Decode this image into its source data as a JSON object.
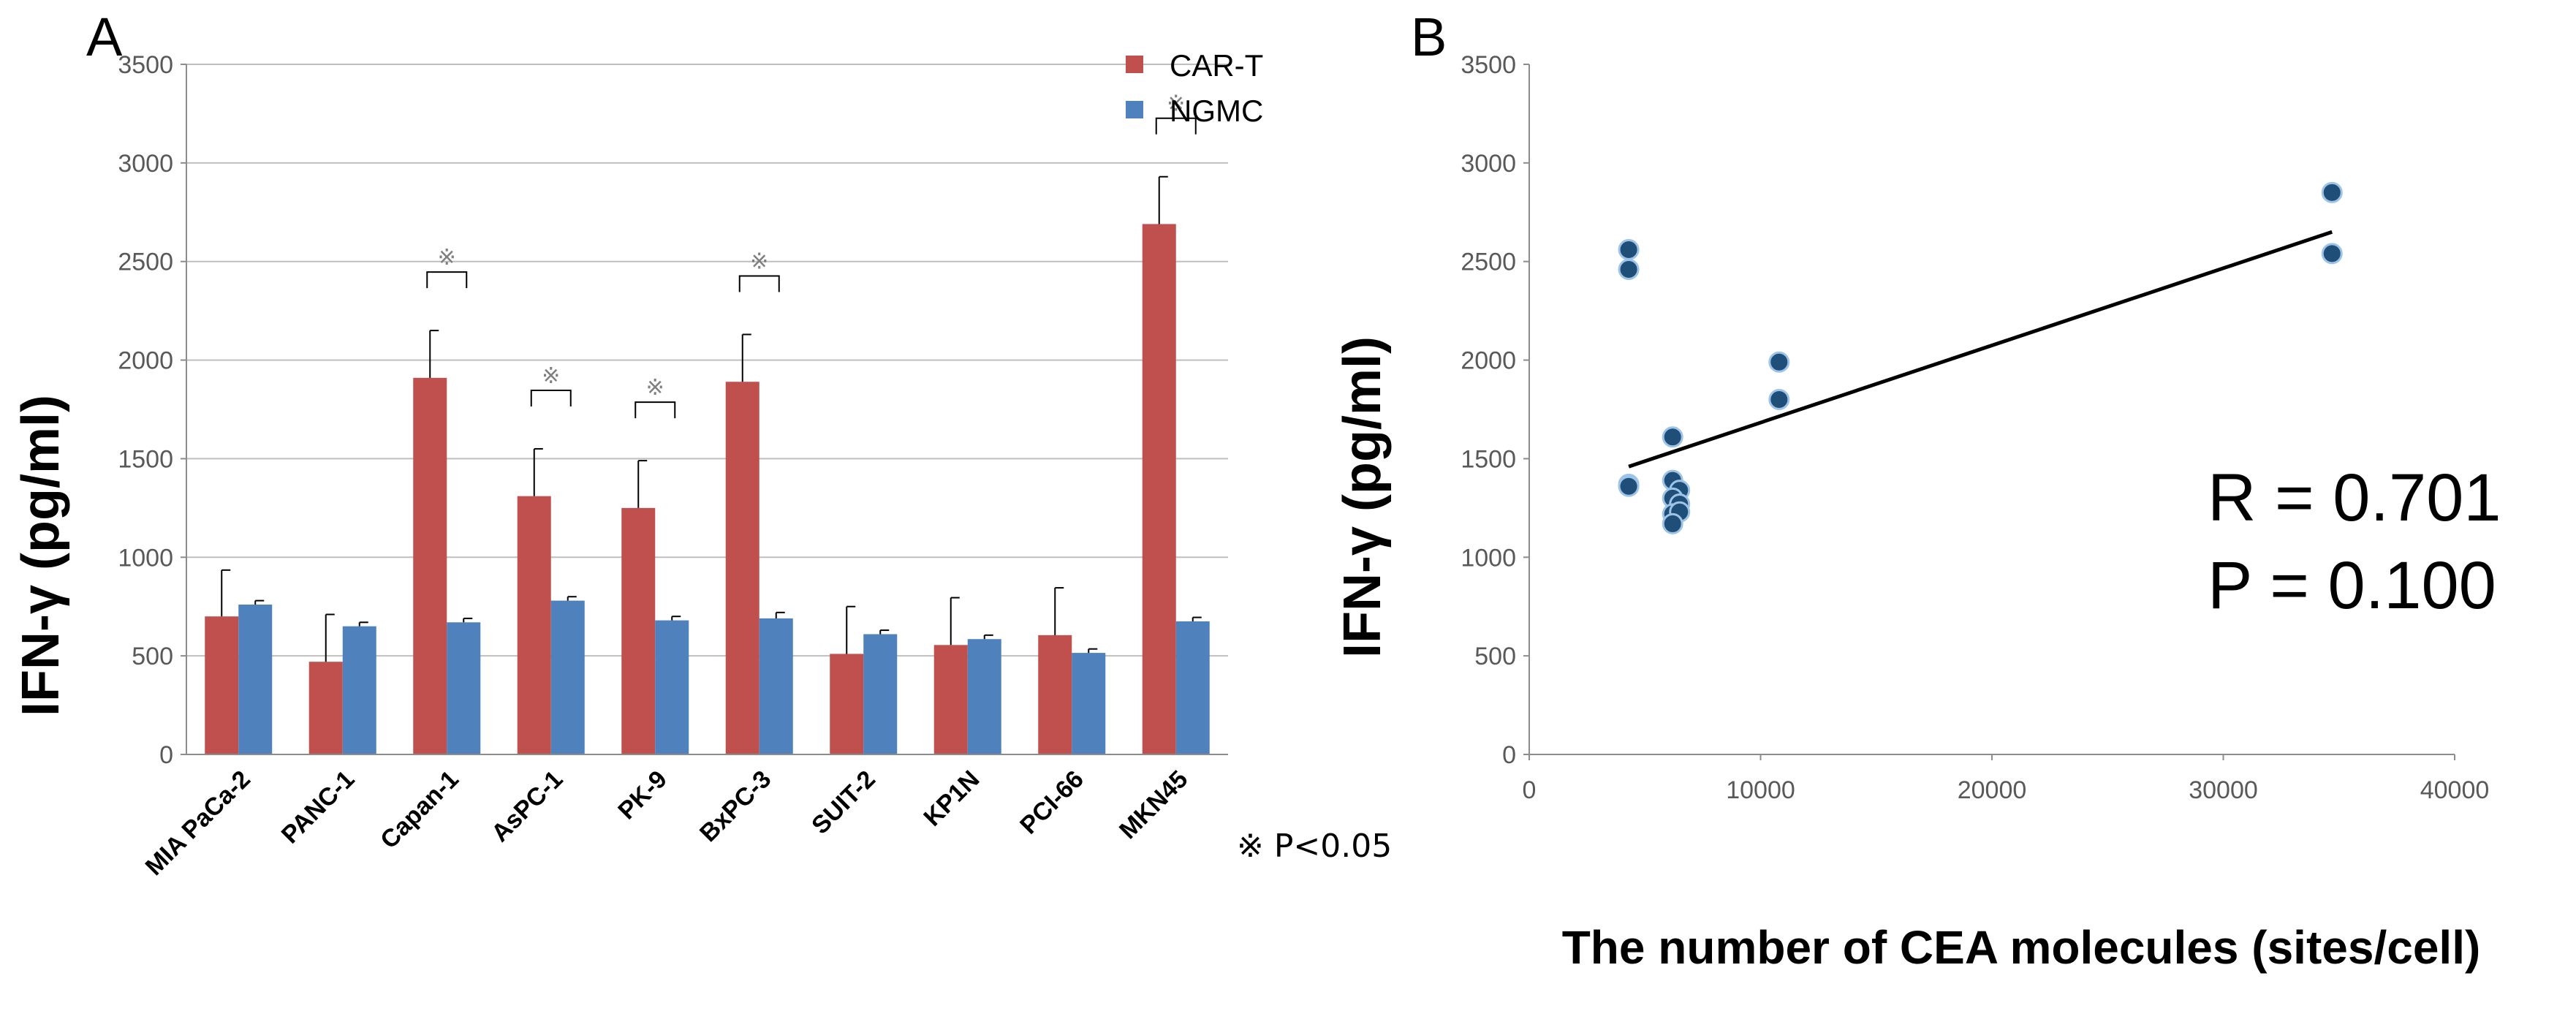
{
  "chart_data": [
    {
      "type": "bar",
      "panel": "A",
      "ylabel": "IFN-γ (pg/ml)",
      "xlabel": "",
      "ylim": [
        0,
        3500
      ],
      "yticks": [
        0,
        500,
        1000,
        1500,
        2000,
        2500,
        3000,
        3500
      ],
      "grid": true,
      "categories": [
        "MIA PaCa-2",
        "PANC-1",
        "Capan-1",
        "AsPC-1",
        "PK-9",
        "BxPC-3",
        "SUIT-2",
        "KP1N",
        "PCI-66",
        "MKN45"
      ],
      "series": [
        {
          "name": "CAR-T",
          "color": "#c0504d",
          "values": [
            700,
            470,
            1910,
            1310,
            1250,
            1890,
            510,
            555,
            605,
            2690
          ],
          "error": [
            235,
            240,
            240,
            240,
            240,
            240,
            240,
            240,
            240,
            240
          ]
        },
        {
          "name": "NGMC",
          "color": "#4f81bd",
          "values": [
            760,
            650,
            670,
            780,
            680,
            690,
            610,
            585,
            515,
            675
          ],
          "error": [
            20,
            20,
            20,
            20,
            20,
            30,
            20,
            20,
            20,
            20
          ]
        }
      ],
      "legend": "top-right",
      "significance": {
        "marker": "※",
        "categories": [
          "Capan-1",
          "AsPC-1",
          "PK-9",
          "BxPC-3",
          "MKN45"
        ],
        "note": "※ P<0.05"
      }
    },
    {
      "type": "scatter",
      "panel": "B",
      "xlabel": "The number of CEA molecules (sites/cell)",
      "ylabel": "IFN-γ (pg/ml)",
      "xlim": [
        0,
        40000
      ],
      "ylim": [
        0,
        3500
      ],
      "xticks": [
        0,
        10000,
        20000,
        30000,
        40000
      ],
      "yticks": [
        0,
        500,
        1000,
        1500,
        2000,
        2500,
        3000,
        3500
      ],
      "point_color": "#1f4e79",
      "points": [
        {
          "x": 4300,
          "y": 2560
        },
        {
          "x": 4300,
          "y": 2460
        },
        {
          "x": 4300,
          "y": 1370
        },
        {
          "x": 4300,
          "y": 1360
        },
        {
          "x": 6200,
          "y": 1610
        },
        {
          "x": 6200,
          "y": 1390
        },
        {
          "x": 6500,
          "y": 1340
        },
        {
          "x": 6200,
          "y": 1300
        },
        {
          "x": 6500,
          "y": 1270
        },
        {
          "x": 6200,
          "y": 1220
        },
        {
          "x": 6500,
          "y": 1230
        },
        {
          "x": 6200,
          "y": 1170
        },
        {
          "x": 10800,
          "y": 1990
        },
        {
          "x": 10800,
          "y": 1800
        },
        {
          "x": 34700,
          "y": 2850
        },
        {
          "x": 34700,
          "y": 2540
        }
      ],
      "trendline": {
        "x": [
          4300,
          34700
        ],
        "y": [
          1460,
          2650
        ]
      },
      "annotations": [
        "R = 0.701",
        "P = 0.100"
      ]
    }
  ]
}
